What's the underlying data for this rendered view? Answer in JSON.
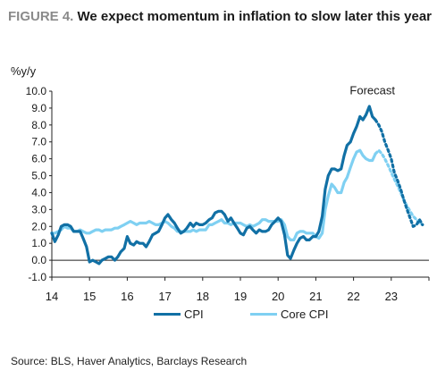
{
  "header": {
    "figure_label": "FIGURE 4.",
    "title": "We expect momentum in inflation to slow later this year"
  },
  "source": "Source: BLS, Haver Analytics, Barclays Research",
  "colors": {
    "cpi": "#1170a5",
    "core_cpi": "#7fd0f2",
    "grid": "#d9d9d9",
    "axis": "#222222"
  },
  "chart_data": {
    "type": "line",
    "ylabel": "%y/y",
    "annotation": "Forecast",
    "ylim": [
      -1.0,
      10.0
    ],
    "yticks": [
      -1.0,
      0.0,
      1.0,
      2.0,
      3.0,
      4.0,
      5.0,
      6.0,
      7.0,
      8.0,
      9.0,
      10.0
    ],
    "ytick_labels": [
      "-1.0",
      "0.0",
      "1.0",
      "2.0",
      "3.0",
      "4.0",
      "5.0",
      "6.0",
      "7.0",
      "8.0",
      "9.0",
      "10.0"
    ],
    "xlim": [
      2014.0,
      2024.0
    ],
    "xticks": [
      2014,
      2015,
      2016,
      2017,
      2018,
      2019,
      2020,
      2021,
      2022,
      2023
    ],
    "xtick_labels": [
      "14",
      "15",
      "16",
      "17",
      "18",
      "19",
      "20",
      "21",
      "22",
      "23"
    ],
    "legend": "bottom",
    "grid": false,
    "series": [
      {
        "name": "CPI",
        "color": "#1170a5",
        "x": [
          2014.0,
          2014.08,
          2014.17,
          2014.25,
          2014.33,
          2014.42,
          2014.5,
          2014.58,
          2014.67,
          2014.75,
          2014.83,
          2014.92,
          2015.0,
          2015.08,
          2015.17,
          2015.25,
          2015.33,
          2015.42,
          2015.5,
          2015.58,
          2015.67,
          2015.75,
          2015.83,
          2015.92,
          2016.0,
          2016.08,
          2016.17,
          2016.25,
          2016.33,
          2016.42,
          2016.5,
          2016.58,
          2016.67,
          2016.75,
          2016.83,
          2016.92,
          2017.0,
          2017.08,
          2017.17,
          2017.25,
          2017.33,
          2017.42,
          2017.5,
          2017.58,
          2017.67,
          2017.75,
          2017.83,
          2017.92,
          2018.0,
          2018.08,
          2018.17,
          2018.25,
          2018.33,
          2018.42,
          2018.5,
          2018.58,
          2018.67,
          2018.75,
          2018.83,
          2018.92,
          2019.0,
          2019.08,
          2019.17,
          2019.25,
          2019.33,
          2019.42,
          2019.5,
          2019.58,
          2019.67,
          2019.75,
          2019.83,
          2019.92,
          2020.0,
          2020.08,
          2020.17,
          2020.25,
          2020.33,
          2020.42,
          2020.5,
          2020.58,
          2020.67,
          2020.75,
          2020.83,
          2020.92,
          2021.0,
          2021.08,
          2021.17,
          2021.25,
          2021.33,
          2021.42,
          2021.5,
          2021.58,
          2021.67,
          2021.75,
          2021.83,
          2021.92,
          2022.0,
          2022.08,
          2022.17,
          2022.25,
          2022.33,
          2022.42,
          2022.5,
          2022.58
        ],
        "y": [
          1.6,
          1.1,
          1.5,
          2.0,
          2.1,
          2.1,
          2.0,
          1.7,
          1.7,
          1.7,
          1.3,
          0.8,
          -0.1,
          0.0,
          -0.1,
          -0.2,
          0.0,
          0.1,
          0.2,
          0.2,
          0.0,
          0.2,
          0.5,
          0.7,
          1.4,
          1.0,
          0.9,
          1.1,
          1.0,
          1.0,
          0.8,
          1.1,
          1.5,
          1.6,
          1.7,
          2.1,
          2.5,
          2.7,
          2.4,
          2.2,
          1.9,
          1.6,
          1.7,
          1.9,
          2.2,
          2.0,
          2.2,
          2.1,
          2.1,
          2.2,
          2.4,
          2.5,
          2.8,
          2.9,
          2.9,
          2.7,
          2.3,
          2.5,
          2.2,
          1.9,
          1.6,
          1.5,
          1.9,
          2.0,
          1.8,
          1.6,
          1.8,
          1.7,
          1.7,
          1.8,
          2.1,
          2.3,
          2.5,
          2.3,
          1.5,
          0.3,
          0.1,
          0.6,
          1.0,
          1.3,
          1.4,
          1.2,
          1.2,
          1.4,
          1.4,
          1.7,
          2.6,
          4.2,
          5.0,
          5.4,
          5.4,
          5.3,
          5.4,
          6.2,
          6.8,
          7.0,
          7.5,
          7.9,
          8.5,
          8.3,
          8.6,
          9.1,
          8.5,
          8.3
        ]
      },
      {
        "name": "Core CPI",
        "color": "#7fd0f2",
        "x": [
          2014.0,
          2014.08,
          2014.17,
          2014.25,
          2014.33,
          2014.42,
          2014.5,
          2014.58,
          2014.67,
          2014.75,
          2014.83,
          2014.92,
          2015.0,
          2015.08,
          2015.17,
          2015.25,
          2015.33,
          2015.42,
          2015.5,
          2015.58,
          2015.67,
          2015.75,
          2015.83,
          2015.92,
          2016.0,
          2016.08,
          2016.17,
          2016.25,
          2016.33,
          2016.42,
          2016.5,
          2016.58,
          2016.67,
          2016.75,
          2016.83,
          2016.92,
          2017.0,
          2017.08,
          2017.17,
          2017.25,
          2017.33,
          2017.42,
          2017.5,
          2017.58,
          2017.67,
          2017.75,
          2017.83,
          2017.92,
          2018.0,
          2018.08,
          2018.17,
          2018.25,
          2018.33,
          2018.42,
          2018.5,
          2018.58,
          2018.67,
          2018.75,
          2018.83,
          2018.92,
          2019.0,
          2019.08,
          2019.17,
          2019.25,
          2019.33,
          2019.42,
          2019.5,
          2019.58,
          2019.67,
          2019.75,
          2019.83,
          2019.92,
          2020.0,
          2020.08,
          2020.17,
          2020.25,
          2020.33,
          2020.42,
          2020.5,
          2020.58,
          2020.67,
          2020.75,
          2020.83,
          2020.92,
          2021.0,
          2021.08,
          2021.17,
          2021.25,
          2021.33,
          2021.42,
          2021.5,
          2021.58,
          2021.67,
          2021.75,
          2021.83,
          2021.92,
          2022.0,
          2022.08,
          2022.17,
          2022.25,
          2022.33,
          2022.42,
          2022.5,
          2022.58
        ],
        "y": [
          1.6,
          1.6,
          1.7,
          1.8,
          2.0,
          1.9,
          1.9,
          1.7,
          1.7,
          1.8,
          1.7,
          1.6,
          1.6,
          1.7,
          1.8,
          1.8,
          1.7,
          1.8,
          1.8,
          1.8,
          1.9,
          1.9,
          2.0,
          2.1,
          2.2,
          2.3,
          2.2,
          2.1,
          2.2,
          2.2,
          2.2,
          2.3,
          2.2,
          2.1,
          2.1,
          2.2,
          2.3,
          2.2,
          2.0,
          1.9,
          1.7,
          1.7,
          1.7,
          1.7,
          1.7,
          1.8,
          1.7,
          1.8,
          1.8,
          1.8,
          2.1,
          2.1,
          2.2,
          2.3,
          2.4,
          2.2,
          2.2,
          2.1,
          2.2,
          2.2,
          2.2,
          2.1,
          2.0,
          2.1,
          2.0,
          2.1,
          2.2,
          2.4,
          2.4,
          2.3,
          2.3,
          2.3,
          2.3,
          2.4,
          2.1,
          1.4,
          1.2,
          1.2,
          1.6,
          1.7,
          1.7,
          1.6,
          1.6,
          1.6,
          1.4,
          1.3,
          1.6,
          3.0,
          3.8,
          4.5,
          4.3,
          4.0,
          4.0,
          4.6,
          4.9,
          5.5,
          6.0,
          6.4,
          6.5,
          6.2,
          6.0,
          5.9,
          5.9,
          6.3
        ]
      },
      {
        "name": "CPI forecast",
        "color": "#1170a5",
        "x": [
          2022.58,
          2022.67,
          2022.75,
          2022.83,
          2022.92,
          2023.0,
          2023.08,
          2023.17,
          2023.25,
          2023.33,
          2023.42,
          2023.5,
          2023.58,
          2023.67,
          2023.75,
          2023.83
        ],
        "y": [
          8.3,
          8.0,
          7.6,
          7.0,
          6.5,
          6.0,
          5.2,
          4.7,
          4.2,
          3.6,
          3.0,
          2.5,
          2.0,
          2.1,
          2.4,
          2.1
        ]
      },
      {
        "name": "Core CPI forecast",
        "color": "#7fd0f2",
        "x": [
          2022.58,
          2022.67,
          2022.75,
          2022.83,
          2022.92,
          2023.0,
          2023.08,
          2023.17,
          2023.25,
          2023.33,
          2023.42,
          2023.5,
          2023.58,
          2023.67,
          2023.75,
          2023.83
        ],
        "y": [
          6.3,
          6.5,
          6.3,
          6.0,
          5.6,
          5.2,
          4.8,
          4.4,
          4.0,
          3.6,
          3.2,
          2.9,
          2.6,
          2.4,
          2.2,
          2.1
        ]
      }
    ],
    "legend_items": [
      {
        "label": "CPI",
        "color": "#1170a5"
      },
      {
        "label": "Core CPI",
        "color": "#7fd0f2"
      }
    ]
  }
}
